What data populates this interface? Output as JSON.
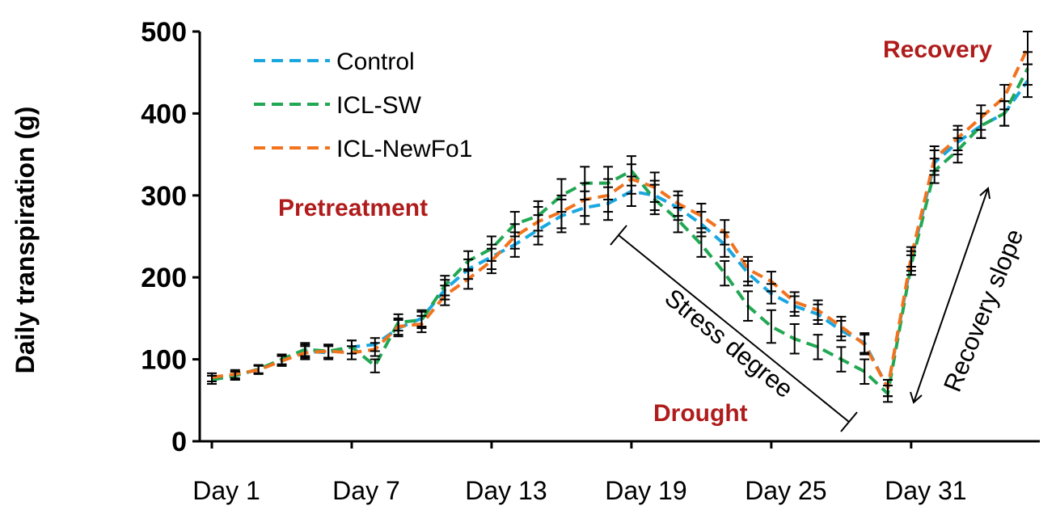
{
  "chart_data": {
    "type": "line",
    "ylabel": "Daily transpiration (g)",
    "xlabel": "",
    "ylim": [
      0,
      500
    ],
    "yticks": [
      0,
      100,
      200,
      300,
      400,
      500
    ],
    "x_day_range": [
      1,
      36
    ],
    "xticks": [
      {
        "day": 1,
        "label": "Day 1"
      },
      {
        "day": 7,
        "label": "Day 7"
      },
      {
        "day": 13,
        "label": "Day 13"
      },
      {
        "day": 19,
        "label": "Day 19"
      },
      {
        "day": 25,
        "label": "Day 25"
      },
      {
        "day": 31,
        "label": "Day 31"
      }
    ],
    "line_style": "dashed",
    "error_bars": true,
    "legend_position": "top-left",
    "series": [
      {
        "name": "Control",
        "color": "#1aa7e0",
        "days": [
          1,
          2,
          3,
          4,
          5,
          6,
          7,
          8,
          9,
          10,
          11,
          12,
          13,
          14,
          15,
          16,
          17,
          18,
          19,
          20,
          21,
          22,
          23,
          24,
          25,
          26,
          27,
          28,
          29,
          30,
          31,
          32,
          33,
          34,
          35,
          36
        ],
        "values": [
          75,
          80,
          88,
          98,
          110,
          108,
          115,
          118,
          138,
          150,
          185,
          210,
          225,
          240,
          258,
          275,
          285,
          290,
          305,
          300,
          285,
          265,
          240,
          205,
          180,
          165,
          155,
          135,
          120,
          65,
          220,
          340,
          365,
          385,
          400,
          440
        ],
        "errors": [
          5,
          5,
          5,
          6,
          8,
          8,
          8,
          8,
          10,
          10,
          12,
          12,
          15,
          15,
          18,
          20,
          20,
          20,
          18,
          18,
          15,
          15,
          15,
          15,
          12,
          12,
          12,
          12,
          12,
          10,
          12,
          15,
          15,
          15,
          15,
          20
        ]
      },
      {
        "name": "ICL-SW",
        "color": "#22a854",
        "days": [
          1,
          2,
          3,
          4,
          5,
          6,
          7,
          8,
          9,
          10,
          11,
          12,
          13,
          14,
          15,
          16,
          17,
          18,
          19,
          20,
          21,
          22,
          23,
          24,
          25,
          26,
          27,
          28,
          29,
          30,
          31,
          32,
          33,
          34,
          35,
          36
        ],
        "values": [
          75,
          80,
          88,
          100,
          112,
          110,
          115,
          92,
          145,
          148,
          190,
          220,
          235,
          265,
          275,
          300,
          315,
          315,
          330,
          295,
          270,
          240,
          205,
          165,
          140,
          125,
          115,
          100,
          85,
          58,
          215,
          330,
          355,
          385,
          400,
          455
        ],
        "errors": [
          5,
          5,
          5,
          6,
          8,
          8,
          8,
          8,
          10,
          10,
          12,
          12,
          15,
          15,
          18,
          20,
          20,
          20,
          18,
          18,
          15,
          15,
          15,
          18,
          20,
          18,
          15,
          15,
          15,
          10,
          12,
          15,
          15,
          15,
          15,
          20
        ]
      },
      {
        "name": "ICL-NewFo1",
        "color": "#f2731e",
        "days": [
          1,
          2,
          3,
          4,
          5,
          6,
          7,
          8,
          9,
          10,
          11,
          12,
          13,
          14,
          15,
          16,
          17,
          18,
          19,
          20,
          21,
          22,
          23,
          24,
          25,
          26,
          27,
          28,
          29,
          30,
          31,
          32,
          33,
          34,
          35,
          36
        ],
        "values": [
          78,
          82,
          87,
          98,
          108,
          110,
          108,
          112,
          140,
          143,
          178,
          198,
          220,
          250,
          268,
          280,
          295,
          300,
          320,
          310,
          290,
          275,
          255,
          210,
          195,
          170,
          160,
          140,
          118,
          65,
          225,
          345,
          370,
          395,
          420,
          480
        ],
        "errors": [
          5,
          5,
          5,
          6,
          8,
          8,
          8,
          8,
          10,
          10,
          12,
          12,
          15,
          15,
          18,
          20,
          20,
          20,
          18,
          18,
          15,
          15,
          15,
          15,
          12,
          12,
          12,
          12,
          12,
          10,
          12,
          15,
          15,
          15,
          15,
          20
        ]
      }
    ],
    "annotations": [
      {
        "text": "Pretreatment",
        "kind": "phase"
      },
      {
        "text": "Drought",
        "kind": "phase"
      },
      {
        "text": "Recovery",
        "kind": "phase"
      },
      {
        "text": "Stress degree",
        "kind": "arrow-label"
      },
      {
        "text": "Recovery slope",
        "kind": "arrow-label"
      }
    ],
    "phase_color": "#b01c1c"
  }
}
